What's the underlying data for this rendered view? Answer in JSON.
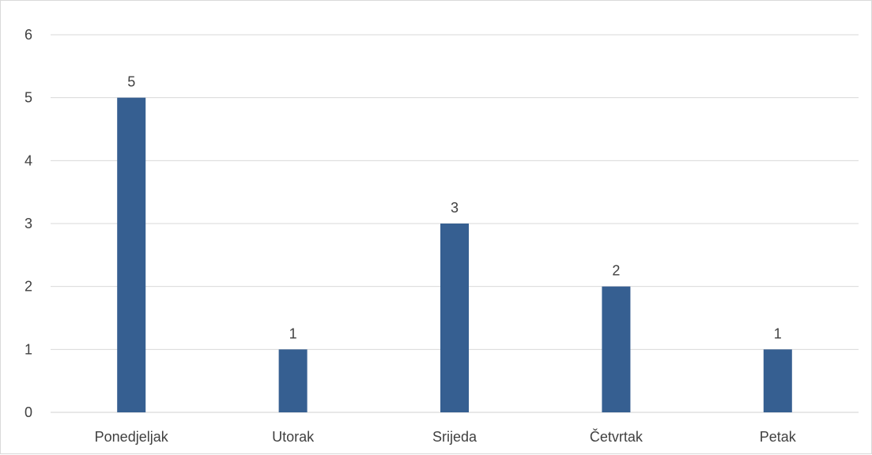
{
  "chart_data": {
    "type": "bar",
    "title": "",
    "xlabel": "",
    "ylabel": "",
    "categories": [
      "Ponedjeljak",
      "Utorak",
      "Srijeda",
      "Četvrtak",
      "Petak"
    ],
    "series": [
      {
        "values": [
          5,
          1,
          3,
          2,
          1
        ]
      }
    ],
    "ylim": [
      0,
      6
    ],
    "yticks": [
      0,
      1,
      2,
      3,
      4,
      5,
      6
    ],
    "grid": true,
    "legend": "none",
    "data_labels": true,
    "colors": {
      "bar": "#365f91",
      "grid": "#d9d9d9",
      "text": "#404040",
      "frame": "#d9d9d9"
    }
  }
}
